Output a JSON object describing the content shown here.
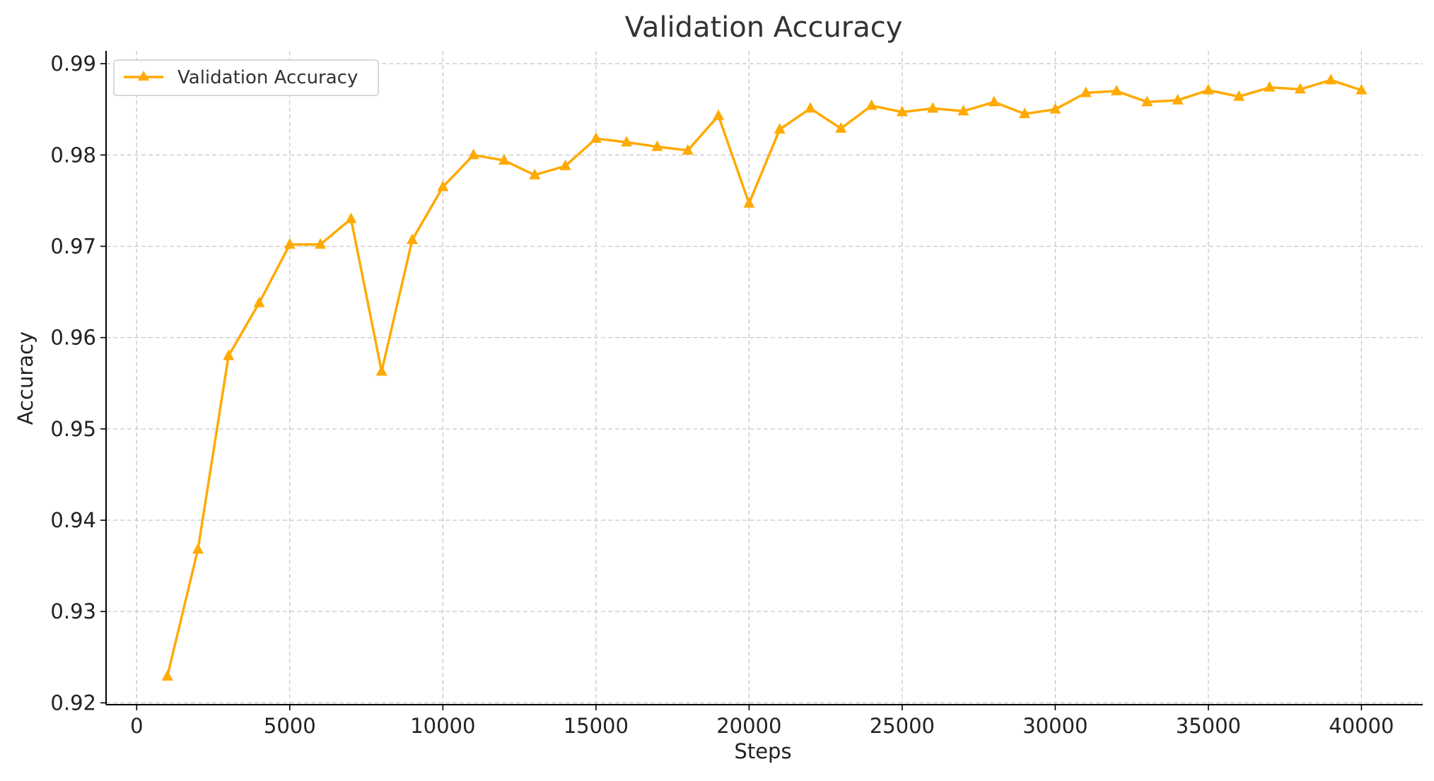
{
  "colors": {
    "series": "#FFAA00",
    "grid": "#c8c8c8",
    "axis": "#000000"
  },
  "chart_data": {
    "type": "line",
    "title": "Validation Accuracy",
    "xlabel": "Steps",
    "ylabel": "Accuracy",
    "xlim": [
      -1000,
      42000
    ],
    "ylim": [
      0.9198,
      0.9914
    ],
    "xticks": [
      0,
      5000,
      10000,
      15000,
      20000,
      25000,
      30000,
      35000,
      40000
    ],
    "yticks": [
      0.92,
      0.93,
      0.94,
      0.95,
      0.96,
      0.97,
      0.98,
      0.99
    ],
    "xtick_labels": [
      "0",
      "5000",
      "10000",
      "15000",
      "20000",
      "25000",
      "30000",
      "35000",
      "40000"
    ],
    "ytick_labels": [
      "0.92",
      "0.93",
      "0.94",
      "0.95",
      "0.96",
      "0.97",
      "0.98",
      "0.99"
    ],
    "grid": true,
    "legend_position": "top-left",
    "series": [
      {
        "name": "Validation Accuracy",
        "marker": "triangle-up",
        "color": "#FFAA00",
        "x": [
          1000,
          2000,
          3000,
          4000,
          5000,
          6000,
          7000,
          8000,
          9000,
          10000,
          11000,
          12000,
          13000,
          14000,
          15000,
          16000,
          17000,
          18000,
          19000,
          20000,
          21000,
          22000,
          23000,
          24000,
          25000,
          26000,
          27000,
          28000,
          29000,
          30000,
          31000,
          32000,
          33000,
          34000,
          35000,
          36000,
          37000,
          38000,
          39000,
          40000
        ],
        "y": [
          0.9229,
          0.9368,
          0.958,
          0.9638,
          0.9702,
          0.9702,
          0.973,
          0.9563,
          0.9707,
          0.9765,
          0.98,
          0.9794,
          0.9778,
          0.9788,
          0.9818,
          0.9814,
          0.9809,
          0.9805,
          0.9843,
          0.9747,
          0.9828,
          0.9851,
          0.9829,
          0.9854,
          0.9847,
          0.9851,
          0.9848,
          0.9858,
          0.9845,
          0.985,
          0.9868,
          0.987,
          0.9858,
          0.986,
          0.9871,
          0.9864,
          0.9874,
          0.9872,
          0.9882,
          0.9871
        ]
      }
    ]
  }
}
